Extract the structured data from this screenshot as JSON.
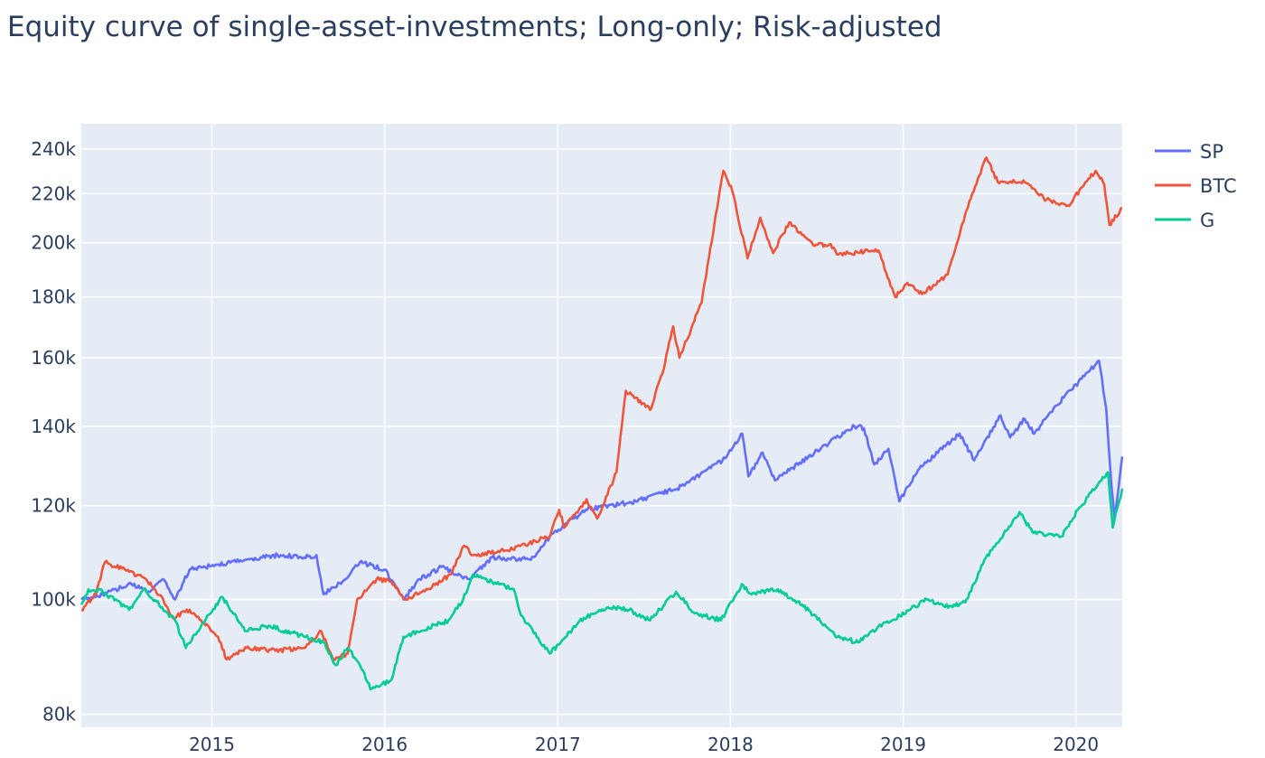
{
  "chart_data": {
    "type": "line",
    "title": "Equity curve of single-asset-investments; Long-only; Risk-adjusted",
    "xlabel": "",
    "ylabel": "",
    "y_scale": "log",
    "grid": true,
    "legend_position": "top-right",
    "background": "#e5ecf6",
    "x_range": [
      "2014-03-31",
      "2020-04-08"
    ],
    "y_range": [
      78000,
      252000
    ],
    "x_ticks": [
      "2015",
      "2016",
      "2017",
      "2018",
      "2019",
      "2020"
    ],
    "y_ticks": [
      {
        "value": 80000,
        "label": "80k"
      },
      {
        "value": 100000,
        "label": "100k"
      },
      {
        "value": 120000,
        "label": "120k"
      },
      {
        "value": 140000,
        "label": "140k"
      },
      {
        "value": 160000,
        "label": "160k"
      },
      {
        "value": 180000,
        "label": "180k"
      },
      {
        "value": 200000,
        "label": "200k"
      },
      {
        "value": 220000,
        "label": "220k"
      },
      {
        "value": 240000,
        "label": "240k"
      }
    ],
    "series": [
      {
        "name": "SP",
        "color": "#636efa",
        "points": [
          [
            "2014-03-31",
            100000
          ],
          [
            "2014-05-15",
            101000
          ],
          [
            "2014-07-15",
            103000
          ],
          [
            "2014-08-20",
            101500
          ],
          [
            "2014-09-20",
            104000
          ],
          [
            "2014-10-15",
            100000
          ],
          [
            "2014-11-15",
            106000
          ],
          [
            "2015-01-15",
            107000
          ],
          [
            "2015-03-15",
            108000
          ],
          [
            "2015-05-20",
            109000
          ],
          [
            "2015-07-15",
            108500
          ],
          [
            "2015-08-10",
            109000
          ],
          [
            "2015-08-25",
            101000
          ],
          [
            "2015-10-10",
            104000
          ],
          [
            "2015-11-10",
            107500
          ],
          [
            "2016-01-01",
            106000
          ],
          [
            "2016-02-10",
            100000
          ],
          [
            "2016-03-15",
            104000
          ],
          [
            "2016-04-30",
            106500
          ],
          [
            "2016-06-27",
            104000
          ],
          [
            "2016-08-15",
            108500
          ],
          [
            "2016-11-05",
            108000
          ],
          [
            "2016-12-15",
            113000
          ],
          [
            "2017-03-01",
            119000
          ],
          [
            "2017-06-15",
            121000
          ],
          [
            "2017-09-10",
            124000
          ],
          [
            "2017-12-15",
            131000
          ],
          [
            "2018-01-26",
            138000
          ],
          [
            "2018-02-08",
            127000
          ],
          [
            "2018-03-10",
            133000
          ],
          [
            "2018-04-05",
            126000
          ],
          [
            "2018-06-15",
            132000
          ],
          [
            "2018-09-20",
            140000
          ],
          [
            "2018-10-10",
            139500
          ],
          [
            "2018-11-01",
            130000
          ],
          [
            "2018-12-01",
            134000
          ],
          [
            "2018-12-24",
            121000
          ],
          [
            "2019-02-01",
            128500
          ],
          [
            "2019-04-30",
            138000
          ],
          [
            "2019-05-31",
            131000
          ],
          [
            "2019-07-26",
            143000
          ],
          [
            "2019-08-15",
            137000
          ],
          [
            "2019-09-15",
            142000
          ],
          [
            "2019-10-05",
            138000
          ],
          [
            "2019-11-15",
            145000
          ],
          [
            "2020-02-19",
            159000
          ],
          [
            "2020-03-05",
            145000
          ],
          [
            "2020-03-16",
            125000
          ],
          [
            "2020-03-23",
            117000
          ],
          [
            "2020-04-08",
            132000
          ]
        ]
      },
      {
        "name": "BTC",
        "color": "#ef553b",
        "points": [
          [
            "2014-03-31",
            98000
          ],
          [
            "2014-05-01",
            101000
          ],
          [
            "2014-05-20",
            107500
          ],
          [
            "2014-07-01",
            106000
          ],
          [
            "2014-08-15",
            104000
          ],
          [
            "2014-09-20",
            100000
          ],
          [
            "2014-10-10",
            96500
          ],
          [
            "2014-11-15",
            98000
          ],
          [
            "2015-01-14",
            93000
          ],
          [
            "2015-02-01",
            89000
          ],
          [
            "2015-03-15",
            91000
          ],
          [
            "2015-05-15",
            90500
          ],
          [
            "2015-07-15",
            91000
          ],
          [
            "2015-08-20",
            94000
          ],
          [
            "2015-09-15",
            89000
          ],
          [
            "2015-10-15",
            90000
          ],
          [
            "2015-11-04",
            100000
          ],
          [
            "2015-12-15",
            104000
          ],
          [
            "2016-01-15",
            103500
          ],
          [
            "2016-02-15",
            100000
          ],
          [
            "2016-04-01",
            102000
          ],
          [
            "2016-05-20",
            105000
          ],
          [
            "2016-06-17",
            111000
          ],
          [
            "2016-07-05",
            109000
          ],
          [
            "2016-09-15",
            110000
          ],
          [
            "2016-11-01",
            111500
          ],
          [
            "2016-12-15",
            113000
          ],
          [
            "2017-01-04",
            119000
          ],
          [
            "2017-01-15",
            115000
          ],
          [
            "2017-03-03",
            121500
          ],
          [
            "2017-03-25",
            117000
          ],
          [
            "2017-05-05",
            128000
          ],
          [
            "2017-05-25",
            150000
          ],
          [
            "2017-06-15",
            148000
          ],
          [
            "2017-07-15",
            144500
          ],
          [
            "2017-08-10",
            155000
          ],
          [
            "2017-09-02",
            170000
          ],
          [
            "2017-09-15",
            160000
          ],
          [
            "2017-11-01",
            178000
          ],
          [
            "2017-12-17",
            230000
          ],
          [
            "2018-01-05",
            221000
          ],
          [
            "2018-02-06",
            194000
          ],
          [
            "2018-03-05",
            210000
          ],
          [
            "2018-04-01",
            196000
          ],
          [
            "2018-05-05",
            208000
          ],
          [
            "2018-06-25",
            199000
          ],
          [
            "2018-08-01",
            199500
          ],
          [
            "2018-08-14",
            195500
          ],
          [
            "2018-11-10",
            197000
          ],
          [
            "2018-12-15",
            180000
          ],
          [
            "2019-01-10",
            185000
          ],
          [
            "2019-02-10",
            181000
          ],
          [
            "2019-04-05",
            188000
          ],
          [
            "2019-05-15",
            213000
          ],
          [
            "2019-06-26",
            236000
          ],
          [
            "2019-07-20",
            225000
          ],
          [
            "2019-09-15",
            225000
          ],
          [
            "2019-10-25",
            218000
          ],
          [
            "2019-12-15",
            215000
          ],
          [
            "2020-02-12",
            230000
          ],
          [
            "2020-03-01",
            224000
          ],
          [
            "2020-03-12",
            207000
          ],
          [
            "2020-04-08",
            214000
          ]
        ]
      },
      {
        "name": "G",
        "color": "#00cc96",
        "points": [
          [
            "2014-03-31",
            99000
          ],
          [
            "2014-04-15",
            102000
          ],
          [
            "2014-05-15",
            101500
          ],
          [
            "2014-07-10",
            98000
          ],
          [
            "2014-08-10",
            102000
          ],
          [
            "2014-10-15",
            96000
          ],
          [
            "2014-11-07",
            91000
          ],
          [
            "2015-01-22",
            100500
          ],
          [
            "2015-03-15",
            94000
          ],
          [
            "2015-05-01",
            95000
          ],
          [
            "2015-07-15",
            93000
          ],
          [
            "2015-08-25",
            92000
          ],
          [
            "2015-09-20",
            88000
          ],
          [
            "2015-10-15",
            91000
          ],
          [
            "2015-11-10",
            88000
          ],
          [
            "2015-12-02",
            84000
          ],
          [
            "2016-01-15",
            85500
          ],
          [
            "2016-02-10",
            93000
          ],
          [
            "2016-05-15",
            96000
          ],
          [
            "2016-06-15",
            100000
          ],
          [
            "2016-07-06",
            105000
          ],
          [
            "2016-08-15",
            103500
          ],
          [
            "2016-09-30",
            102000
          ],
          [
            "2016-10-15",
            97000
          ],
          [
            "2016-12-15",
            90000
          ],
          [
            "2017-02-25",
            96500
          ],
          [
            "2017-04-17",
            98500
          ],
          [
            "2017-06-01",
            98000
          ],
          [
            "2017-07-15",
            96000
          ],
          [
            "2017-09-08",
            101500
          ],
          [
            "2017-10-15",
            97500
          ],
          [
            "2017-12-12",
            96000
          ],
          [
            "2018-01-25",
            103000
          ],
          [
            "2018-02-15",
            101000
          ],
          [
            "2018-04-11",
            102000
          ],
          [
            "2018-06-01",
            99000
          ],
          [
            "2018-08-15",
            93000
          ],
          [
            "2018-09-28",
            92000
          ],
          [
            "2018-10-26",
            94000
          ],
          [
            "2019-01-15",
            98000
          ],
          [
            "2019-02-20",
            100000
          ],
          [
            "2019-04-15",
            98500
          ],
          [
            "2019-05-15",
            100000
          ],
          [
            "2019-06-25",
            108500
          ],
          [
            "2019-09-04",
            118500
          ],
          [
            "2019-10-01",
            114000
          ],
          [
            "2019-12-01",
            113000
          ],
          [
            "2020-01-08",
            119500
          ],
          [
            "2020-02-24",
            126000
          ],
          [
            "2020-03-09",
            128000
          ],
          [
            "2020-03-19",
            115000
          ],
          [
            "2020-04-08",
            124000
          ]
        ]
      }
    ]
  }
}
